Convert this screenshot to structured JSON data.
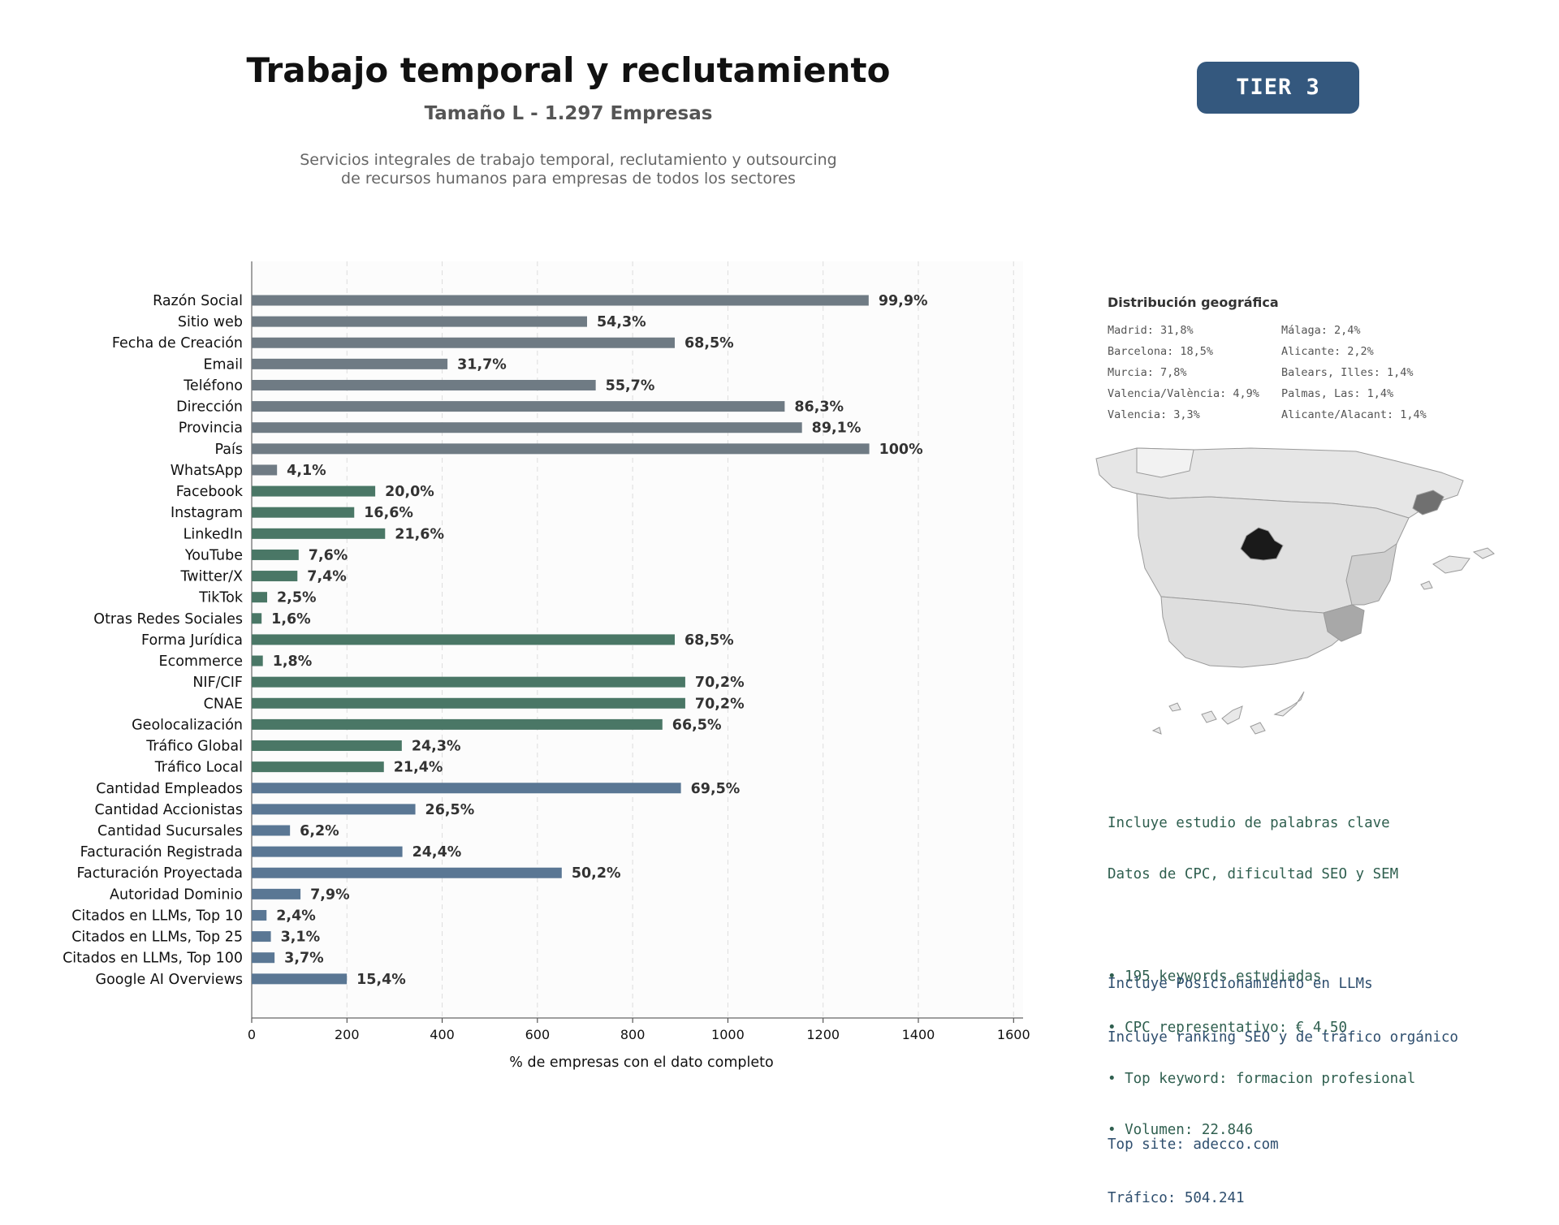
{
  "header": {
    "title": "Trabajo temporal y reclutamiento",
    "subtitle": "Tamaño L - 1.297 Empresas",
    "description_line1": "Servicios integrales de trabajo temporal, reclutamiento y outsourcing",
    "description_line2": "de recursos humanos para empresas de todos los sectores",
    "tier_badge": "TIER 3"
  },
  "colors": {
    "gray": "#6f7b84",
    "green": "#4a7766",
    "blue": "#5a7794",
    "tier": "#34587e"
  },
  "chart_data": {
    "type": "bar",
    "orientation": "horizontal",
    "xlabel": "% de empresas con el dato completo",
    "xlim": [
      0,
      1620
    ],
    "xticks": [
      0,
      200,
      400,
      600,
      800,
      1000,
      1200,
      1400,
      1600
    ],
    "grid": "vertical dashed",
    "total_companies": 1297,
    "categories": [
      "Razón Social",
      "Sitio web",
      "Fecha de Creación",
      "Email",
      "Teléfono",
      "Dirección",
      "Provincia",
      "País",
      "WhatsApp",
      "Facebook",
      "Instagram",
      "LinkedIn",
      "YouTube",
      "Twitter/X",
      "TikTok",
      "Otras Redes Sociales",
      "Forma Jurídica",
      "Ecommerce",
      "NIF/CIF",
      "CNAE",
      "Geolocalización",
      "Tráfico Global",
      "Tráfico Local",
      "Cantidad Empleados",
      "Cantidad Accionistas",
      "Cantidad Sucursales",
      "Facturación Registrada",
      "Facturación Proyectada",
      "Autoridad Dominio",
      "Citados en LLMs, Top 10",
      "Citados en LLMs, Top 25",
      "Citados en LLMs, Top 100",
      "Google AI Overviews"
    ],
    "percent_values": [
      99.9,
      54.3,
      68.5,
      31.7,
      55.7,
      86.3,
      89.1,
      100,
      4.1,
      20.0,
      16.6,
      21.6,
      7.6,
      7.4,
      2.5,
      1.6,
      68.5,
      1.8,
      70.2,
      70.2,
      66.5,
      24.3,
      21.4,
      69.5,
      26.5,
      6.2,
      24.4,
      50.2,
      7.9,
      2.4,
      3.1,
      3.7,
      15.4
    ],
    "labels": [
      "99,9%",
      "54,3%",
      "68,5%",
      "31,7%",
      "55,7%",
      "86,3%",
      "89,1%",
      "100%",
      "4,1%",
      "20,0%",
      "16,6%",
      "21,6%",
      "7,6%",
      "7,4%",
      "2,5%",
      "1,6%",
      "68,5%",
      "1,8%",
      "70,2%",
      "70,2%",
      "66,5%",
      "24,3%",
      "21,4%",
      "69,5%",
      "26,5%",
      "6,2%",
      "24,4%",
      "50,2%",
      "7,9%",
      "2,4%",
      "3,1%",
      "3,7%",
      "15,4%"
    ],
    "groups": [
      "gray",
      "gray",
      "gray",
      "gray",
      "gray",
      "gray",
      "gray",
      "gray",
      "gray",
      "green",
      "green",
      "green",
      "green",
      "green",
      "green",
      "green",
      "green",
      "green",
      "green",
      "green",
      "green",
      "green",
      "green",
      "blue",
      "blue",
      "blue",
      "blue",
      "blue",
      "blue",
      "blue",
      "blue",
      "blue",
      "blue"
    ]
  },
  "geo": {
    "title": "Distribución geográfica",
    "items": [
      "Madrid: 31,8%",
      "Barcelona: 18,5%",
      "Murcia: 7,8%",
      "Valencia/València: 4,9%",
      "Valencia: 3,3%",
      "Málaga: 2,4%",
      "Alicante: 2,2%",
      "Balears, Illes: 1,4%",
      "Palmas, Las: 1,4%",
      "Alicante/Alacant: 1,4%"
    ]
  },
  "keywords": {
    "line1": "Incluye estudio de palabras clave",
    "line2": "Datos de CPC, dificultad SEO y SEM",
    "bullet1": "• 195 keywords estudiadas",
    "bullet2": "• CPC representativo: € 4.50",
    "bullet3": "• Top keyword: formacion profesional",
    "bullet4": "• Volumen: 22.846"
  },
  "llm": {
    "line1": "Incluye Posicionamiento en LLMs",
    "line2": "Incluye ranking SEO y de tráfico orgánico",
    "top_site": "Top site: adecco.com",
    "traffic": "Tráfico: 504.241"
  }
}
